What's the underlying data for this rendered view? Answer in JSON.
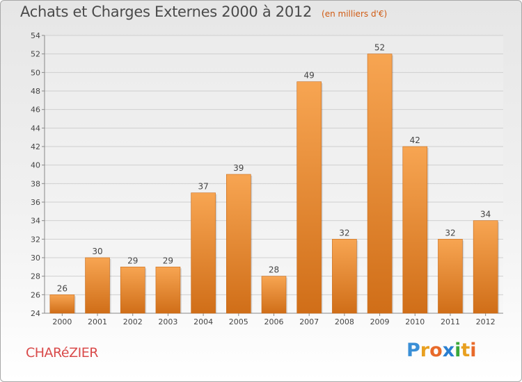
{
  "title": "Achats et Charges Externes 2000 à 2012",
  "subtitle": "(en milliers d'€)",
  "commune": "CHARéZIER",
  "logo": {
    "text": "Proxiti",
    "letters": [
      {
        "ch": "P",
        "color": "#3a8fd6"
      },
      {
        "ch": "r",
        "color": "#e8a020"
      },
      {
        "ch": "o",
        "color": "#e86a2a"
      },
      {
        "ch": "x",
        "color": "#2a7fd0"
      },
      {
        "ch": "i",
        "color": "#3aa83a"
      },
      {
        "ch": "t",
        "color": "#e8a020"
      },
      {
        "ch": "i",
        "color": "#e86a2a"
      }
    ]
  },
  "colors": {
    "bar_light": "#f7a552",
    "bar_dark": "#d06e18",
    "subtitle": "#d05a12",
    "commune": "#d94a4a"
  },
  "chart_data": {
    "type": "bar",
    "categories": [
      "2000",
      "2001",
      "2002",
      "2003",
      "2004",
      "2005",
      "2006",
      "2007",
      "2008",
      "2009",
      "2010",
      "2011",
      "2012"
    ],
    "values": [
      26,
      30,
      29,
      29,
      37,
      39,
      28,
      49,
      32,
      52,
      42,
      32,
      34
    ],
    "ylim": [
      24,
      54
    ],
    "yticks": [
      24,
      26,
      28,
      30,
      32,
      34,
      36,
      38,
      40,
      42,
      44,
      46,
      48,
      50,
      52,
      54
    ],
    "grid": true,
    "data_labels": true
  }
}
